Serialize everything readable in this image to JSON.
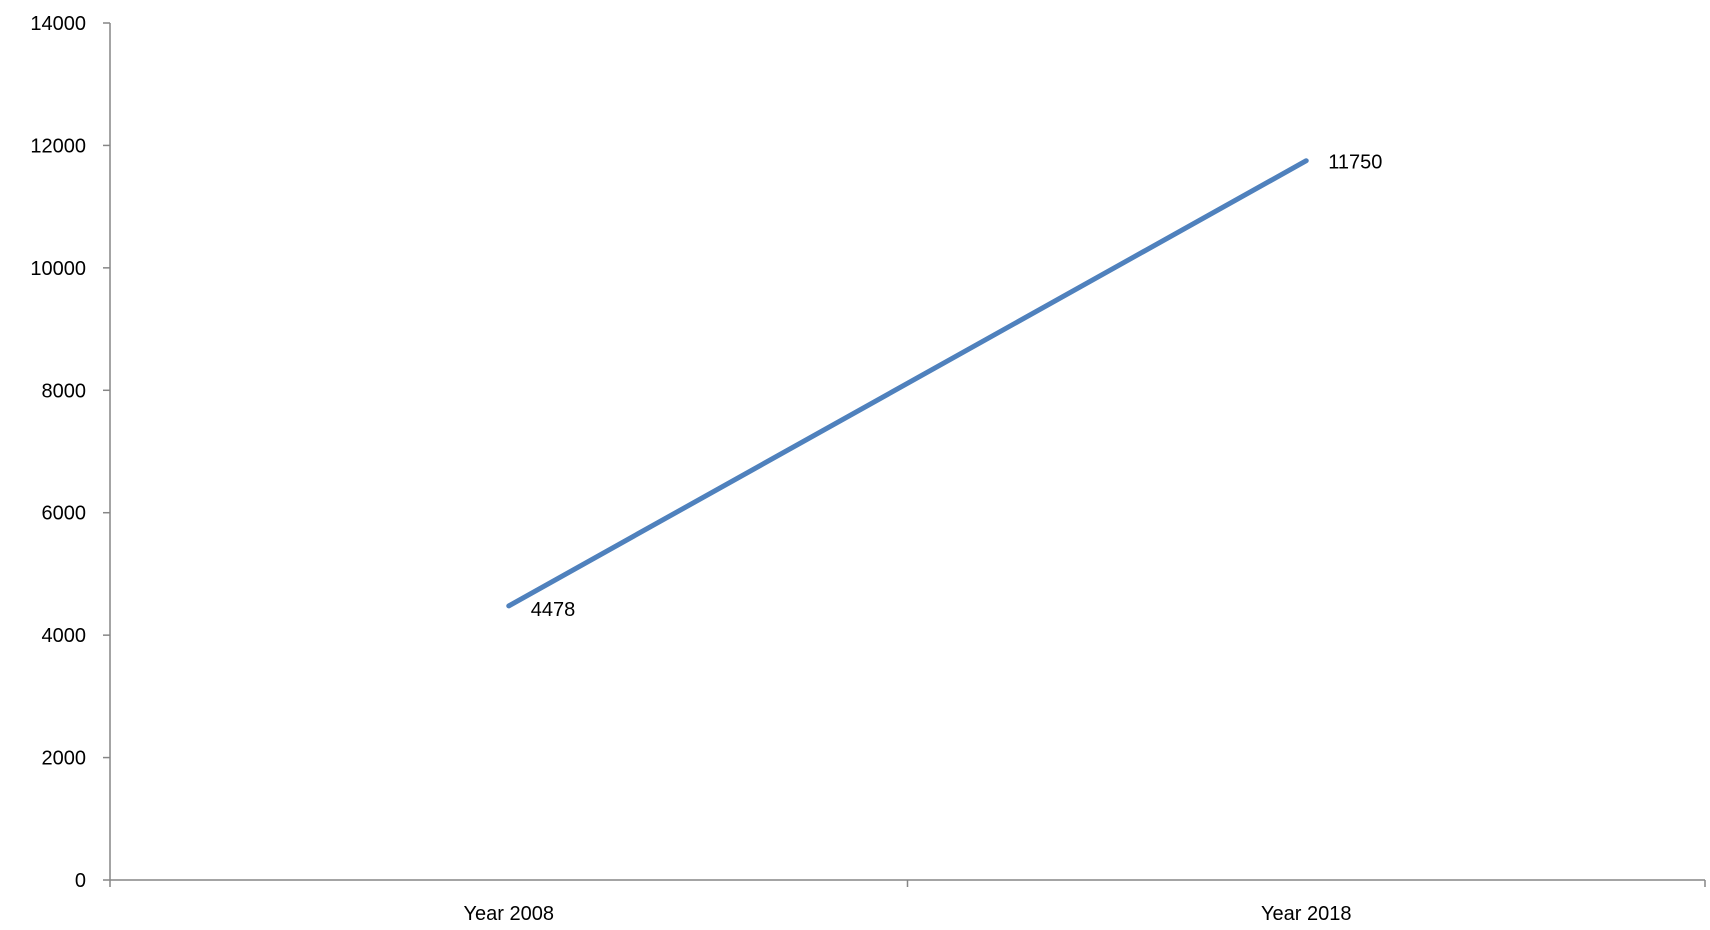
{
  "chart_data": {
    "type": "line",
    "title": "",
    "xlabel": "",
    "ylabel": "",
    "categories": [
      "Year 2008",
      "Year 2018"
    ],
    "series": [
      {
        "values": [
          4478,
          11750
        ],
        "color": "#4f81bd",
        "data_labels": [
          "4478",
          "11750"
        ]
      }
    ],
    "ylim": [
      0,
      14000
    ],
    "yticks": [
      0,
      2000,
      4000,
      6000,
      8000,
      10000,
      12000,
      14000
    ],
    "ytick_labels": [
      "0",
      "2000",
      "4000",
      "6000",
      "8000",
      "10000",
      "12000",
      "14000"
    ],
    "grid": false,
    "legend": "none",
    "axis_color": "#868686"
  }
}
